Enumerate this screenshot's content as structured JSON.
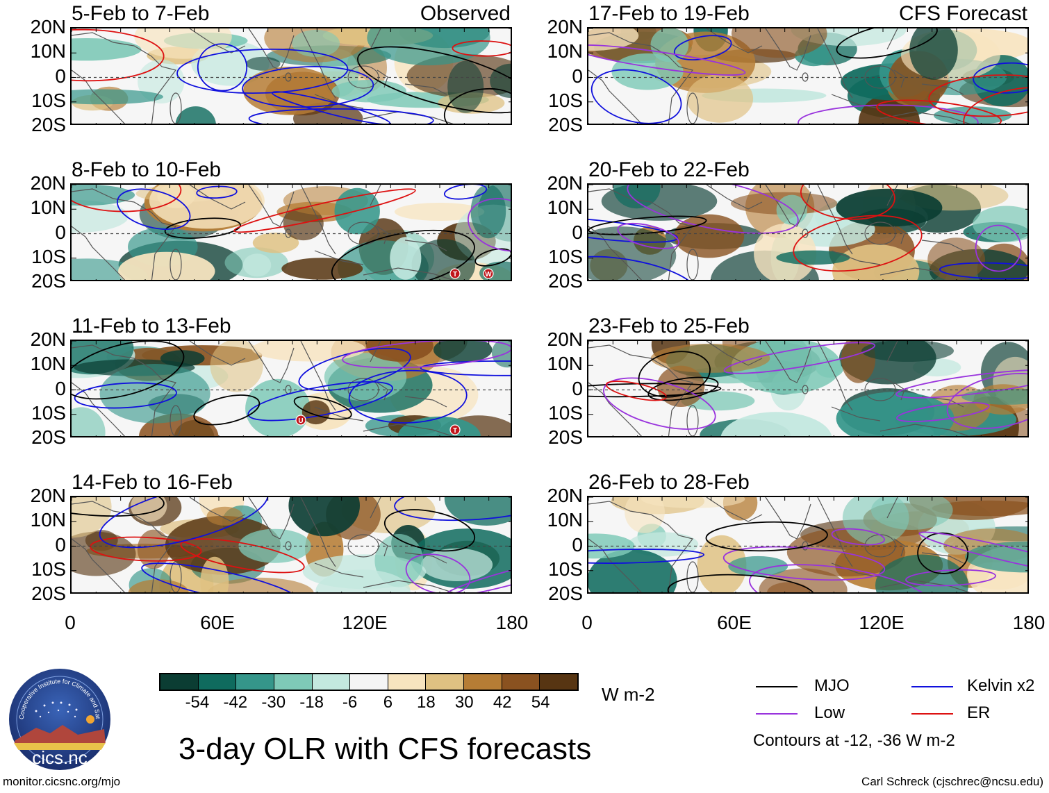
{
  "observed_label": "Observed",
  "forecast_label": "CFS Forecast",
  "panels_left": [
    {
      "title": "5-Feb to 7-Feb",
      "markers": []
    },
    {
      "title": "8-Feb to 10-Feb",
      "markers": [
        "T",
        "W"
      ]
    },
    {
      "title": "11-Feb to 13-Feb",
      "markers": [
        "U",
        "T"
      ]
    },
    {
      "title": "14-Feb to 16-Feb",
      "markers": []
    }
  ],
  "panels_right": [
    {
      "title": "17-Feb to 19-Feb"
    },
    {
      "title": "20-Feb to 22-Feb"
    },
    {
      "title": "23-Feb to 25-Feb"
    },
    {
      "title": "26-Feb to 28-Feb"
    }
  ],
  "lat_labels": [
    "20N",
    "10N",
    "0",
    "10S",
    "20S"
  ],
  "lon_labels": [
    "0",
    "60E",
    "120E",
    "180"
  ],
  "colorbar": {
    "colors": [
      "#0b3d33",
      "#0f6b5e",
      "#35968a",
      "#7ec9b7",
      "#c3e8df",
      "#f5f5f5",
      "#f7e4bf",
      "#dfc182",
      "#b67d35",
      "#8a5220",
      "#573512"
    ],
    "ticks": [
      "-54",
      "-42",
      "-30",
      "-18",
      "-6",
      "6",
      "18",
      "30",
      "42",
      "54"
    ],
    "units": "W m-2"
  },
  "title": "3-day OLR with CFS forecasts",
  "legend": [
    {
      "label": "MJO",
      "color": "#000000"
    },
    {
      "label": "Kelvin x2",
      "color": "#1010dd"
    },
    {
      "label": "Low",
      "color": "#9933dd"
    },
    {
      "label": "ER",
      "color": "#dd1111"
    }
  ],
  "contour_note": "Contours at -12, -36 W m-2",
  "logo_text": "cics.nc",
  "logo_ring_text": "Cooperative Institute for Climate and Satellites",
  "footer_left": "monitor.cicsnc.org/mjo",
  "footer_right": "Carl Schreck (cjschrec@ncsu.edu)"
}
